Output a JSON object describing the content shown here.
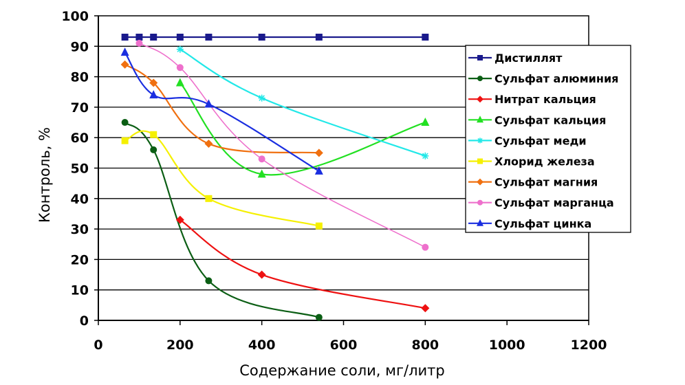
{
  "chart_data": {
    "type": "line",
    "title": "",
    "xlabel": "Содержание соли, мг/литр",
    "ylabel": "Контроль, %",
    "xlim": [
      0,
      1200
    ],
    "ylim": [
      0,
      100
    ],
    "xticks": [
      0,
      200,
      400,
      600,
      800,
      1000,
      1200
    ],
    "yticks": [
      0,
      10,
      20,
      30,
      40,
      50,
      60,
      70,
      80,
      90,
      100
    ],
    "grid": "horizontal",
    "legend_position": "right",
    "series": [
      {
        "name": "Дистиллят",
        "color": "#1a1a8c",
        "marker": "square",
        "x": [
          65,
          100,
          135,
          200,
          270,
          400,
          540,
          800
        ],
        "y": [
          93,
          93,
          93,
          93,
          93,
          93,
          93,
          93
        ]
      },
      {
        "name": "Сульфат алюминия",
        "color": "#0b5e14",
        "marker": "circle",
        "x": [
          65,
          135,
          270,
          540
        ],
        "y": [
          65,
          56,
          13,
          1
        ]
      },
      {
        "name": "Нитрат кальция",
        "color": "#ee1111",
        "marker": "diamond",
        "x": [
          200,
          400,
          800
        ],
        "y": [
          33,
          15,
          4
        ]
      },
      {
        "name": "Сульфат кальция",
        "color": "#22e022",
        "marker": "triangle",
        "x": [
          200,
          400,
          800
        ],
        "y": [
          78,
          48,
          65
        ]
      },
      {
        "name": "Сульфат меди",
        "color": "#22e8e8",
        "marker": "asterisk",
        "x": [
          200,
          400,
          800
        ],
        "y": [
          89,
          73,
          54
        ]
      },
      {
        "name": "Хлорид железа",
        "color": "#f5f000",
        "marker": "square",
        "x": [
          65,
          135,
          270,
          540
        ],
        "y": [
          59,
          61,
          40,
          31
        ]
      },
      {
        "name": "Сульфат магния",
        "color": "#f07010",
        "marker": "diamond",
        "x": [
          65,
          135,
          270,
          540
        ],
        "y": [
          84,
          78,
          58,
          55
        ]
      },
      {
        "name": "Сульфат марганца",
        "color": "#ee70cc",
        "marker": "circle",
        "x": [
          100,
          200,
          400,
          800
        ],
        "y": [
          91,
          83,
          53,
          24
        ]
      },
      {
        "name": "Сульфат цинка",
        "color": "#1a2ee0",
        "marker": "triangle",
        "x": [
          65,
          135,
          270,
          540
        ],
        "y": [
          88,
          74,
          71,
          49
        ]
      }
    ]
  }
}
